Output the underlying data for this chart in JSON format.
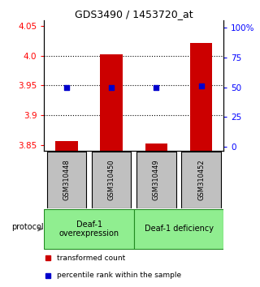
{
  "title": "GDS3490 / 1453720_at",
  "samples": [
    "GSM310448",
    "GSM310450",
    "GSM310449",
    "GSM310452"
  ],
  "transformed_counts": [
    3.856,
    4.002,
    3.852,
    4.021
  ],
  "percentile_ranks": [
    50,
    50,
    50,
    51
  ],
  "ylim_left": [
    3.84,
    4.06
  ],
  "yticks_left": [
    3.85,
    3.9,
    3.95,
    4.0,
    4.05
  ],
  "ylim_right": [
    -3.125,
    106.25
  ],
  "yticks_right": [
    0,
    25,
    50,
    75,
    100
  ],
  "ytick_labels_right": [
    "0",
    "25",
    "50",
    "75",
    "100%"
  ],
  "groups": [
    {
      "label": "Deaf-1\noverexpression",
      "samples": [
        0,
        1
      ],
      "color": "#90EE90"
    },
    {
      "label": "Deaf-1 deficiency",
      "samples": [
        2,
        3
      ],
      "color": "#90EE90"
    }
  ],
  "bar_color": "#CC0000",
  "marker_color": "#0000CC",
  "sample_box_color": "#C0C0C0",
  "background_color": "#FFFFFF",
  "protocol_label": "protocol",
  "legend_items": [
    {
      "color": "#CC0000",
      "label": "  transformed count"
    },
    {
      "color": "#0000CC",
      "label": "  percentile rank within the sample"
    }
  ],
  "dotted_line_y": [
    3.9,
    3.95,
    4.0
  ],
  "bar_width": 0.5
}
